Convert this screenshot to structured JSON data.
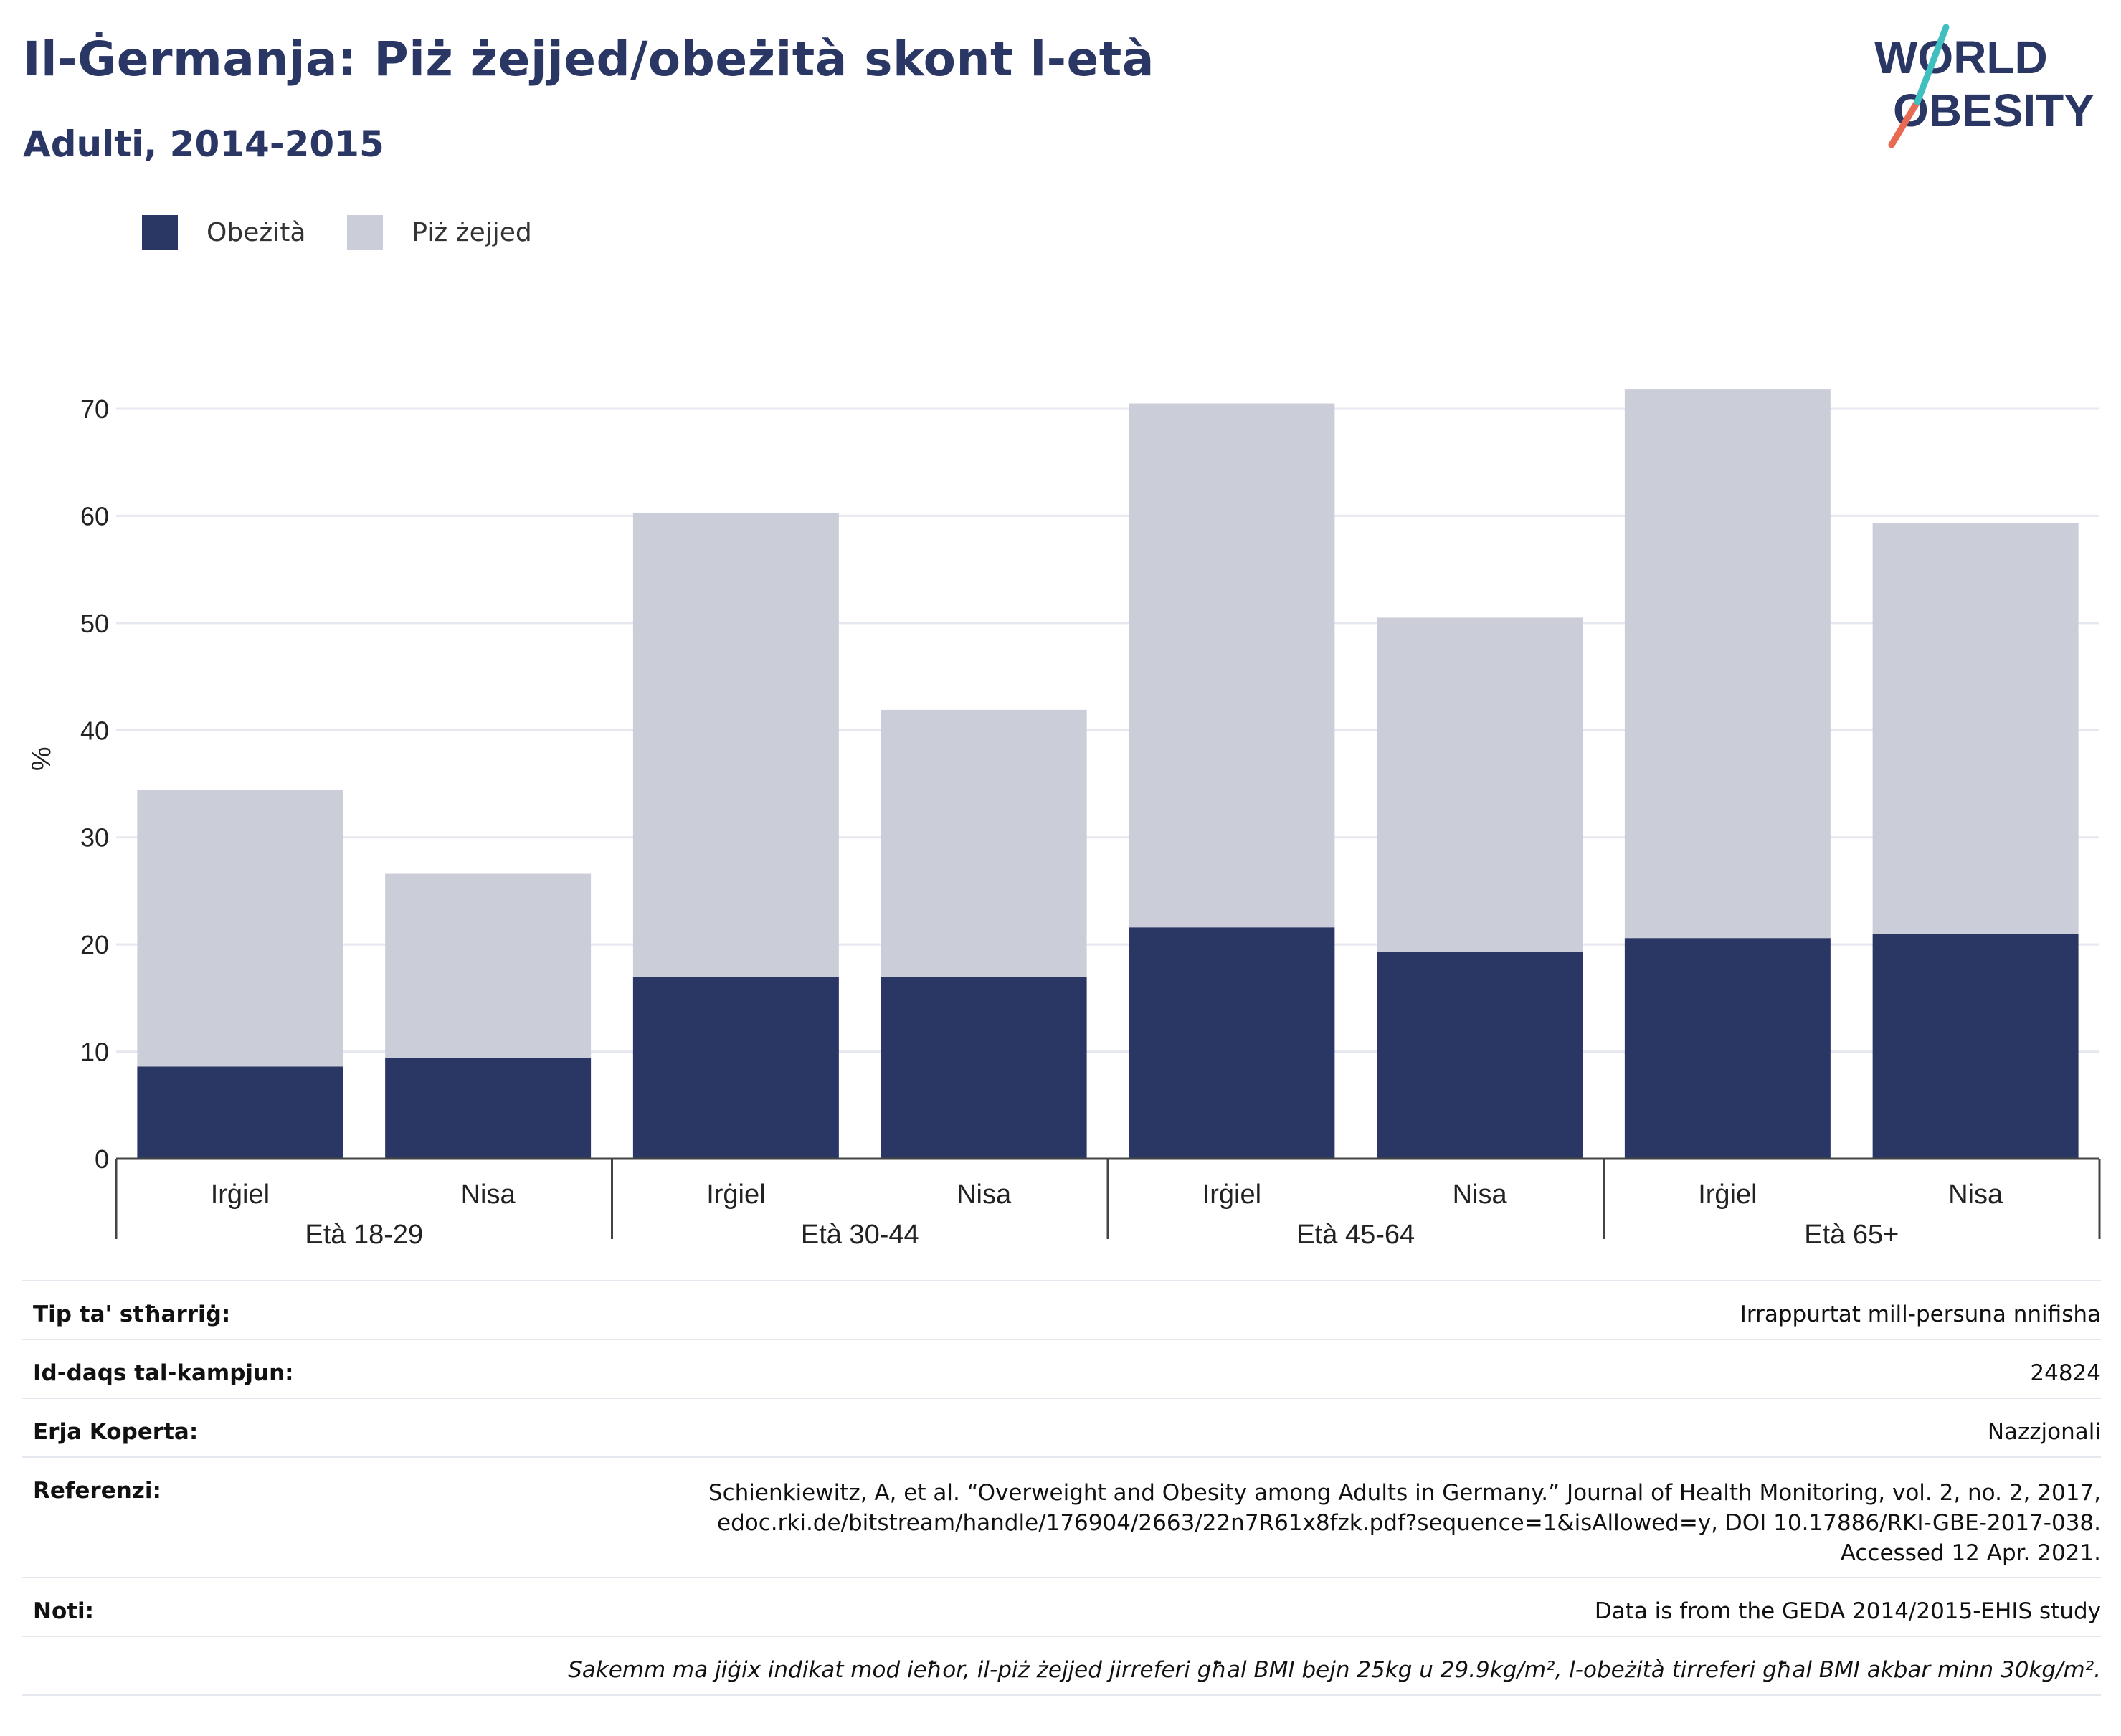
{
  "title": "Il-Ġermanja: Piż żejjed/obeżità skont l-età",
  "subtitle": "Adulti, 2014-2015",
  "logo": {
    "line1": "WORLD",
    "line2": "OBESITY"
  },
  "legend": [
    {
      "label": "Obeżità",
      "color": "#2a3663"
    },
    {
      "label": "Piż żejjed",
      "color": "#cbcdd9"
    }
  ],
  "chart_data": {
    "type": "bar",
    "stacked": true,
    "ylabel": "%",
    "ylim": [
      0,
      75
    ],
    "yticks": [
      0,
      10,
      20,
      30,
      40,
      50,
      60,
      70
    ],
    "groups": [
      "Età 18-29",
      "Età 30-44",
      "Età 45-64",
      "Età 65+"
    ],
    "categories": [
      "Irġiel",
      "Nisa",
      "Irġiel",
      "Nisa",
      "Irġiel",
      "Nisa",
      "Irġiel",
      "Nisa"
    ],
    "series": [
      {
        "name": "Obeżità",
        "color": "#2a3663",
        "values": [
          8.6,
          9.4,
          17.0,
          17.0,
          21.6,
          19.3,
          20.6,
          21.0
        ]
      },
      {
        "name": "Piż żejjed",
        "color": "#cbcdd9",
        "values": [
          25.8,
          17.2,
          43.3,
          24.9,
          48.9,
          31.2,
          51.2,
          38.3
        ]
      }
    ],
    "grid": true
  },
  "info": {
    "type_label": "Tip ta' stħarriġ:",
    "type_value": "Irrappurtat mill-persuna nnifisha",
    "sample_label": "Id-daqs tal-kampjun:",
    "sample_value": "24824",
    "coverage_label": "Erja Koperta:",
    "coverage_value": "Nazzjonali",
    "ref_label": "Referenzi:",
    "ref_line1": "Schienkiewitz, A, et al. “Overweight and Obesity among Adults in Germany.” Journal of Health Monitoring, vol. 2, no. 2, 2017,",
    "ref_line2": "edoc.rki.de/bitstream/handle/176904/2663/22n7R61x8fzk.pdf?sequence=1&isAllowed=y, DOI 10.17886/RKI-GBE-2017-038.",
    "ref_line3": "Accessed 12 Apr. 2021.",
    "notes_label": "Noti:",
    "notes_value": "Data is from the GEDA 2014/2015-EHIS study",
    "footnote": "Sakemm ma jiġix indikat mod ieħor, il-piż żejjed jirreferi għal BMI bejn 25kg u 29.9kg/m², l-obeżità tirreferi għal BMI akbar minn 30kg/m²."
  }
}
